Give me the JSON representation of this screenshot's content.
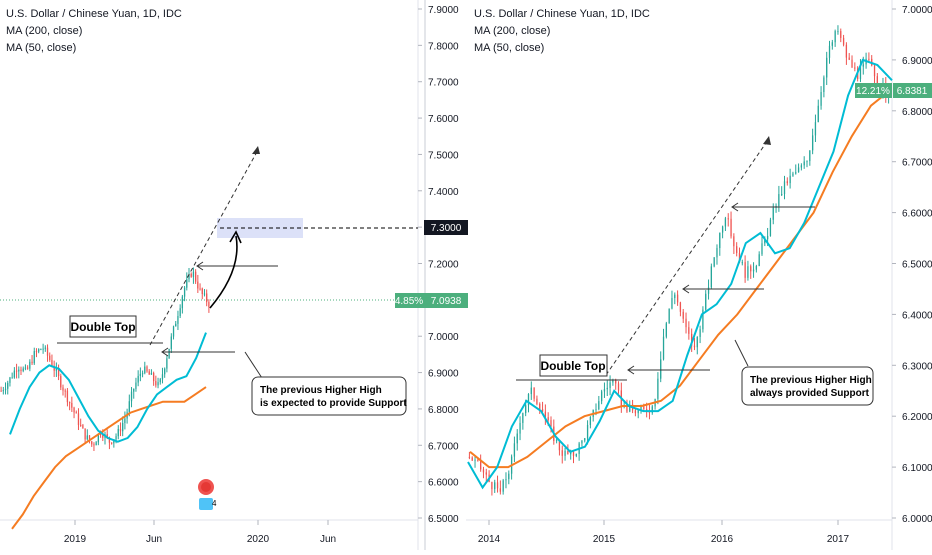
{
  "charts": [
    {
      "type": "candlestick",
      "title": "U.S. Dollar / Chinese Yuan, 1D, IDC",
      "indicators": [
        "MA (200, close)",
        "MA (50, close)"
      ],
      "price_axis_ticks": [
        "7.9000",
        "7.8000",
        "7.7000",
        "7.6000",
        "7.5000",
        "7.4000",
        "7.3000",
        "7.2000",
        "7.1000",
        "7.0000",
        "6.9000",
        "6.8000",
        "6.7000",
        "6.6000",
        "6.5000"
      ],
      "time_axis_ticks": [
        "2019",
        "Jun",
        "2020",
        "Jun"
      ],
      "target_label": "7.3000",
      "price_badge_pct": "4.85%",
      "price_badge_value": "7.0938",
      "pattern_label": "Double Top",
      "callout": [
        "The previous Higher High",
        "is expected to provide Support"
      ],
      "price_points": [
        6.85,
        6.88,
        6.92,
        6.9,
        6.95,
        6.97,
        6.93,
        6.88,
        6.83,
        6.78,
        6.73,
        6.7,
        6.74,
        6.71,
        6.73,
        6.78,
        6.86,
        6.91,
        6.89,
        6.86,
        6.95,
        7.04,
        7.13,
        7.18,
        7.12,
        7.09
      ],
      "ma50_points": [
        6.73,
        6.8,
        6.86,
        6.9,
        6.92,
        6.91,
        6.88,
        6.83,
        6.78,
        6.74,
        6.72,
        6.71,
        6.72,
        6.75,
        6.8,
        6.84,
        6.86,
        6.88,
        6.89,
        6.94,
        7.01
      ],
      "ma200_points": [
        6.47,
        6.51,
        6.56,
        6.6,
        6.64,
        6.67,
        6.69,
        6.71,
        6.73,
        6.75,
        6.77,
        6.79,
        6.8,
        6.81,
        6.82,
        6.82,
        6.82,
        6.84,
        6.86
      ]
    },
    {
      "type": "candlestick",
      "title": "U.S. Dollar / Chinese Yuan, 1D, IDC",
      "indicators": [
        "MA (200, close)",
        "MA (50, close)"
      ],
      "price_axis_ticks": [
        "7.0000",
        "6.9000",
        "6.8000",
        "6.7000",
        "6.6000",
        "6.5000",
        "6.4000",
        "6.3000",
        "6.2000",
        "6.1000",
        "6.0000"
      ],
      "time_axis_ticks": [
        "2014",
        "2015",
        "2016",
        "2017"
      ],
      "price_badge_pct": "12.21%",
      "price_badge_value": "6.8381",
      "pattern_label": "Double Top",
      "callout": [
        "The previous Higher High",
        "always provided Support"
      ],
      "price_points": [
        6.12,
        6.1,
        6.07,
        6.05,
        6.1,
        6.2,
        6.25,
        6.22,
        6.17,
        6.13,
        6.12,
        6.15,
        6.2,
        6.25,
        6.27,
        6.22,
        6.21,
        6.21,
        6.22,
        6.36,
        6.45,
        6.38,
        6.33,
        6.42,
        6.52,
        6.6,
        6.53,
        6.48,
        6.5,
        6.55,
        6.62,
        6.66,
        6.68,
        6.7,
        6.8,
        6.91,
        6.96,
        6.9,
        6.87,
        6.9,
        6.85,
        6.83
      ],
      "ma50_points": [
        6.11,
        6.06,
        6.1,
        6.18,
        6.23,
        6.21,
        6.16,
        6.13,
        6.14,
        6.19,
        6.25,
        6.22,
        6.21,
        6.21,
        6.23,
        6.32,
        6.4,
        6.42,
        6.46,
        6.54,
        6.56,
        6.52,
        6.53,
        6.58,
        6.65,
        6.72,
        6.83,
        6.9,
        6.89,
        6.86
      ],
      "ma200_points": [
        6.13,
        6.1,
        6.1,
        6.12,
        6.15,
        6.18,
        6.2,
        6.21,
        6.22,
        6.22,
        6.23,
        6.26,
        6.31,
        6.36,
        6.4,
        6.45,
        6.5,
        6.55,
        6.6,
        6.68,
        6.75,
        6.81,
        6.84
      ]
    }
  ],
  "colors": {
    "candle_up": "#26a69a",
    "candle_down": "#ef5350",
    "ma50": "#00bcd4",
    "ma200": "#f57c22",
    "badge_green": "#4caf7d",
    "target_box": "#d6dcf7"
  },
  "logo_number": "4"
}
